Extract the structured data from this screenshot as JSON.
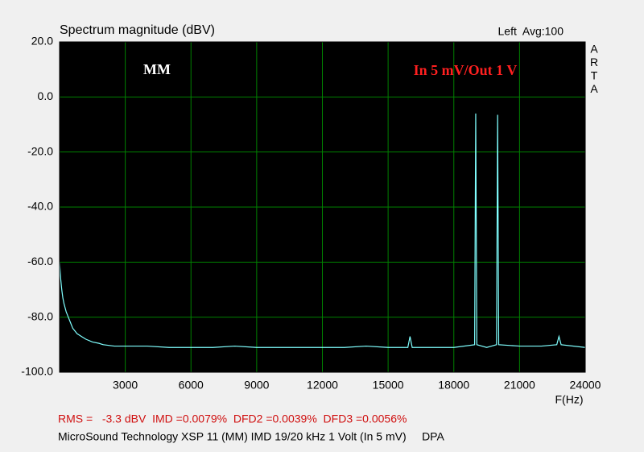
{
  "chart_data": {
    "type": "line",
    "title": "Spectrum magnitude (dBV)",
    "status": "Left  Avg:100",
    "side_label": [
      "A",
      "R",
      "T",
      "A"
    ],
    "annotations": [
      {
        "text": "MM",
        "color": "#ffffff"
      },
      {
        "text": "In 5 mV/Out 1 V",
        "color": "#ff2020"
      }
    ],
    "x_label": "F(Hz)",
    "result_line": "RMS =   -3.3 dBV  IMD =0.0079%  DFD2 =0.0039%  DFD3 =0.0056%",
    "caption": "MicroSound Technology XSP 11 (MM) IMD 19/20 kHz 1 Volt (In 5 mV)     DPA",
    "color": "#80ffff",
    "grid": true,
    "xlim": [
      0,
      24000
    ],
    "ylim": [
      -100,
      20
    ],
    "xticks": [
      3000,
      6000,
      9000,
      12000,
      15000,
      18000,
      21000,
      24000
    ],
    "yticks": [
      {
        "value": 20,
        "label": "20.0"
      },
      {
        "value": 0,
        "label": "0.0"
      },
      {
        "value": -20,
        "label": "-20.0"
      },
      {
        "value": -40,
        "label": "-40.0"
      },
      {
        "value": -60,
        "label": "-60.0"
      },
      {
        "value": -80,
        "label": "-80.0"
      },
      {
        "value": -100,
        "label": "-100.0"
      }
    ],
    "x": [
      0,
      50,
      100,
      150,
      200,
      300,
      400,
      500,
      600,
      800,
      1000,
      1200,
      1500,
      1800,
      2000,
      2500,
      3000,
      4000,
      5000,
      6000,
      7000,
      8000,
      9000,
      10000,
      11000,
      12000,
      13000,
      14000,
      15000,
      15900,
      16000,
      16100,
      17000,
      18000,
      18950,
      19000,
      19050,
      19500,
      19950,
      20000,
      20050,
      21000,
      22000,
      22700,
      22800,
      22900,
      24000
    ],
    "values": [
      -60,
      -66,
      -70,
      -73,
      -75,
      -78,
      -80,
      -82,
      -84,
      -86,
      -87,
      -88,
      -89,
      -89.5,
      -90,
      -90.5,
      -90.5,
      -90.5,
      -91,
      -91,
      -91,
      -90.5,
      -91,
      -91,
      -91,
      -91,
      -91,
      -90.5,
      -91,
      -91,
      -87,
      -91,
      -91,
      -91,
      -90,
      -6,
      -90,
      -91,
      -90,
      -6.5,
      -90,
      -90.5,
      -90.5,
      -90,
      -87,
      -90,
      -91
    ]
  }
}
